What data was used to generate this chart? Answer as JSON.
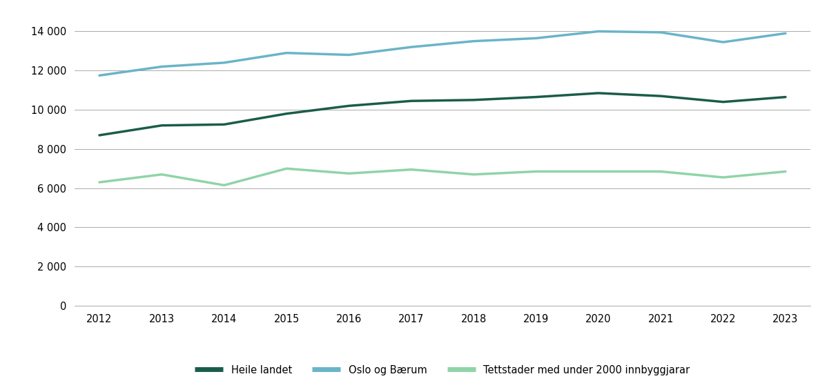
{
  "years": [
    2012,
    2013,
    2014,
    2015,
    2016,
    2017,
    2018,
    2019,
    2020,
    2021,
    2022,
    2023
  ],
  "heile_landet": [
    8700,
    9200,
    9250,
    9800,
    10200,
    10450,
    10500,
    10650,
    10850,
    10700,
    10400,
    10650
  ],
  "oslo_baerum": [
    11750,
    12200,
    12400,
    12900,
    12800,
    13200,
    13500,
    13650,
    14000,
    13950,
    13450,
    13900
  ],
  "tettstader": [
    6300,
    6700,
    6150,
    7000,
    6750,
    6950,
    6700,
    6850,
    6850,
    6850,
    6550,
    6850
  ],
  "heile_landet_color": "#1a5c4a",
  "oslo_baerum_color": "#6ab4c8",
  "tettstader_color": "#8fd4a8",
  "legend_labels": [
    "Heile landet",
    "Oslo og Bærum",
    "Tettstader med under 2000 innbyggjarar"
  ],
  "ylim": [
    0,
    15000
  ],
  "yticks": [
    0,
    2000,
    4000,
    6000,
    8000,
    10000,
    12000,
    14000
  ],
  "linewidth": 2.5,
  "background_color": "#ffffff",
  "grid_color": "#aaaaaa"
}
